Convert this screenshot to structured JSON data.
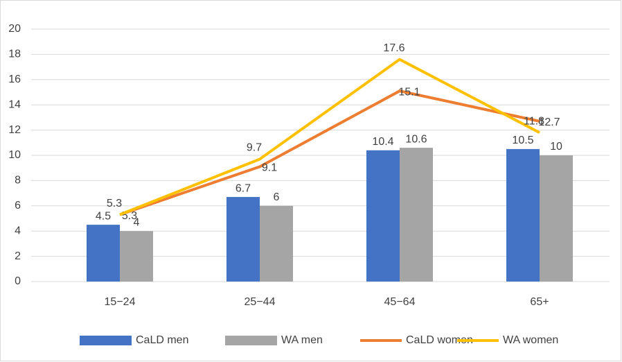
{
  "chart_data": {
    "type": "combo",
    "categories": [
      "15−24",
      "25−44",
      "45−64",
      "65+"
    ],
    "series": [
      {
        "name": "CaLD men",
        "type": "bar",
        "color": "#4472c4",
        "values": [
          4.5,
          6.7,
          10.4,
          10.5
        ]
      },
      {
        "name": "WA men",
        "type": "bar",
        "color": "#a5a5a5",
        "values": [
          4,
          6,
          10.6,
          10
        ]
      },
      {
        "name": "CaLD women",
        "type": "line",
        "color": "#ed7d31",
        "values": [
          5.3,
          9.1,
          15.1,
          12.7
        ]
      },
      {
        "name": "WA women",
        "type": "line",
        "color": "#ffc000",
        "values": [
          5.3,
          9.7,
          17.6,
          11.8
        ]
      }
    ],
    "ylim": [
      0,
      20
    ],
    "yticks": [
      0,
      2,
      4,
      6,
      8,
      10,
      12,
      14,
      16,
      18,
      20
    ],
    "grid": true,
    "legend": "bottom"
  }
}
